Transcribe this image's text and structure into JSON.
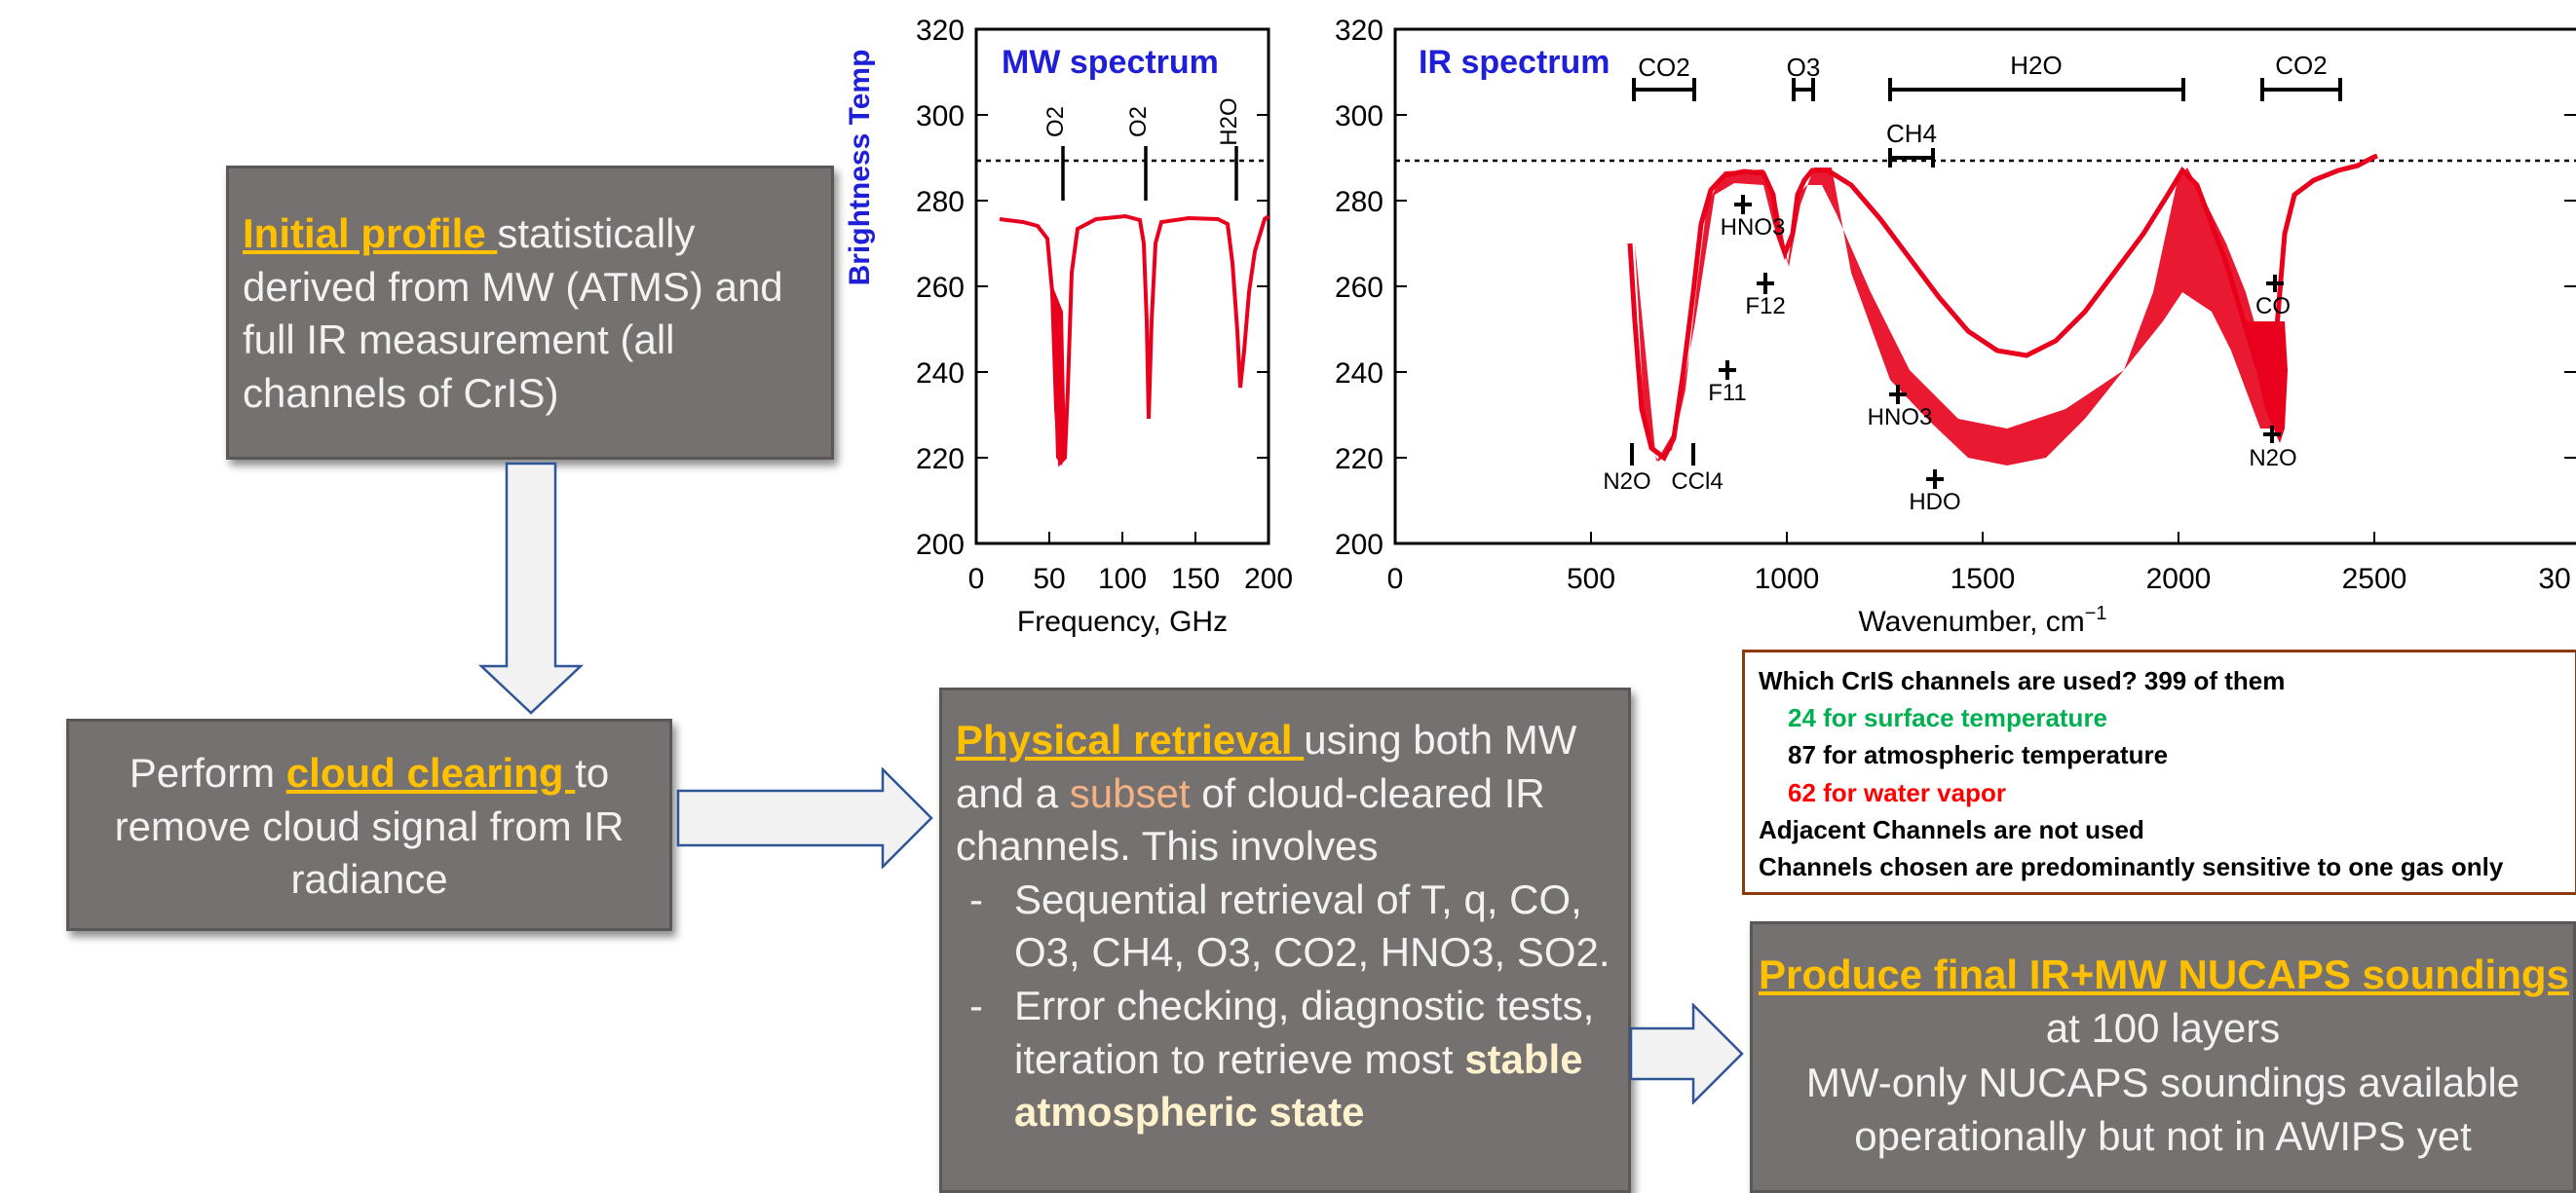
{
  "box_initial": {
    "highlight": "Initial profile ",
    "rest": "statistically derived from MW (ATMS) and full IR measurement (all channels of CrIS)"
  },
  "box_cloud": {
    "pre": "Perform ",
    "highlight": "cloud clearing ",
    "post": "to remove cloud signal from IR radiance"
  },
  "box_physical": {
    "highlight": "Physical retrieval ",
    "text1": "using both MW and a ",
    "subset": "subset",
    "text2": " of cloud-cleared IR channels. This involves",
    "bullets": [
      "Sequential retrieval of T, q, CO, O3, CH4, O3, CO2, HNO3, SO2.",
      "Error checking, diagnostic tests, iteration to retrieve most "
    ],
    "bold_end": "stable atmospheric state"
  },
  "box_final": {
    "highlight": "Produce final IR+MW NUCAPS soundings",
    "line2": "at 100 layers",
    "line3": "MW-only NUCAPS soundings available operationally but not in AWIPS yet"
  },
  "legend": {
    "line1": "Which CrIS channels are used?  399 of them",
    "line2": "24 for surface temperature",
    "line3": "87 for atmospheric temperature",
    "line4": "62 for water vapor",
    "line5": "Adjacent Channels are not used",
    "line6": "Channels chosen are predominantly sensitive to one gas only",
    "colors": {
      "surface": "#00b050",
      "water": "#ff0000"
    }
  },
  "mw_plot": {
    "title": "MW spectrum",
    "ylabel": "Brightness Temp",
    "xlabel": "Frequency, GHz",
    "yticks": [
      "320",
      "300",
      "280",
      "260",
      "240",
      "220",
      "200"
    ],
    "xticks": [
      "0",
      "50",
      "100",
      "150",
      "200"
    ],
    "gases": [
      "O2",
      "O2",
      "H2O"
    ]
  },
  "ir_plot": {
    "title": "IR spectrum",
    "xlabel": "Wavenumber, cm",
    "xlabel_sup": "−1",
    "yticks": [
      "320",
      "300",
      "280",
      "260",
      "240",
      "220",
      "200"
    ],
    "xticks": [
      "0",
      "500",
      "1000",
      "1500",
      "2000",
      "2500",
      "30"
    ],
    "bands": [
      "CO2",
      "O3",
      "H2O",
      "CO2",
      "CH4"
    ],
    "markers": [
      "HNO3",
      "F12",
      "F11",
      "N2O",
      "CCl4",
      "HNO3",
      "HDO",
      "CO",
      "N2O"
    ]
  },
  "colors": {
    "box": "#767171",
    "highlight": "#ffc000",
    "title_blue": "#1f1fd8",
    "spectrum": "#e8001c"
  }
}
